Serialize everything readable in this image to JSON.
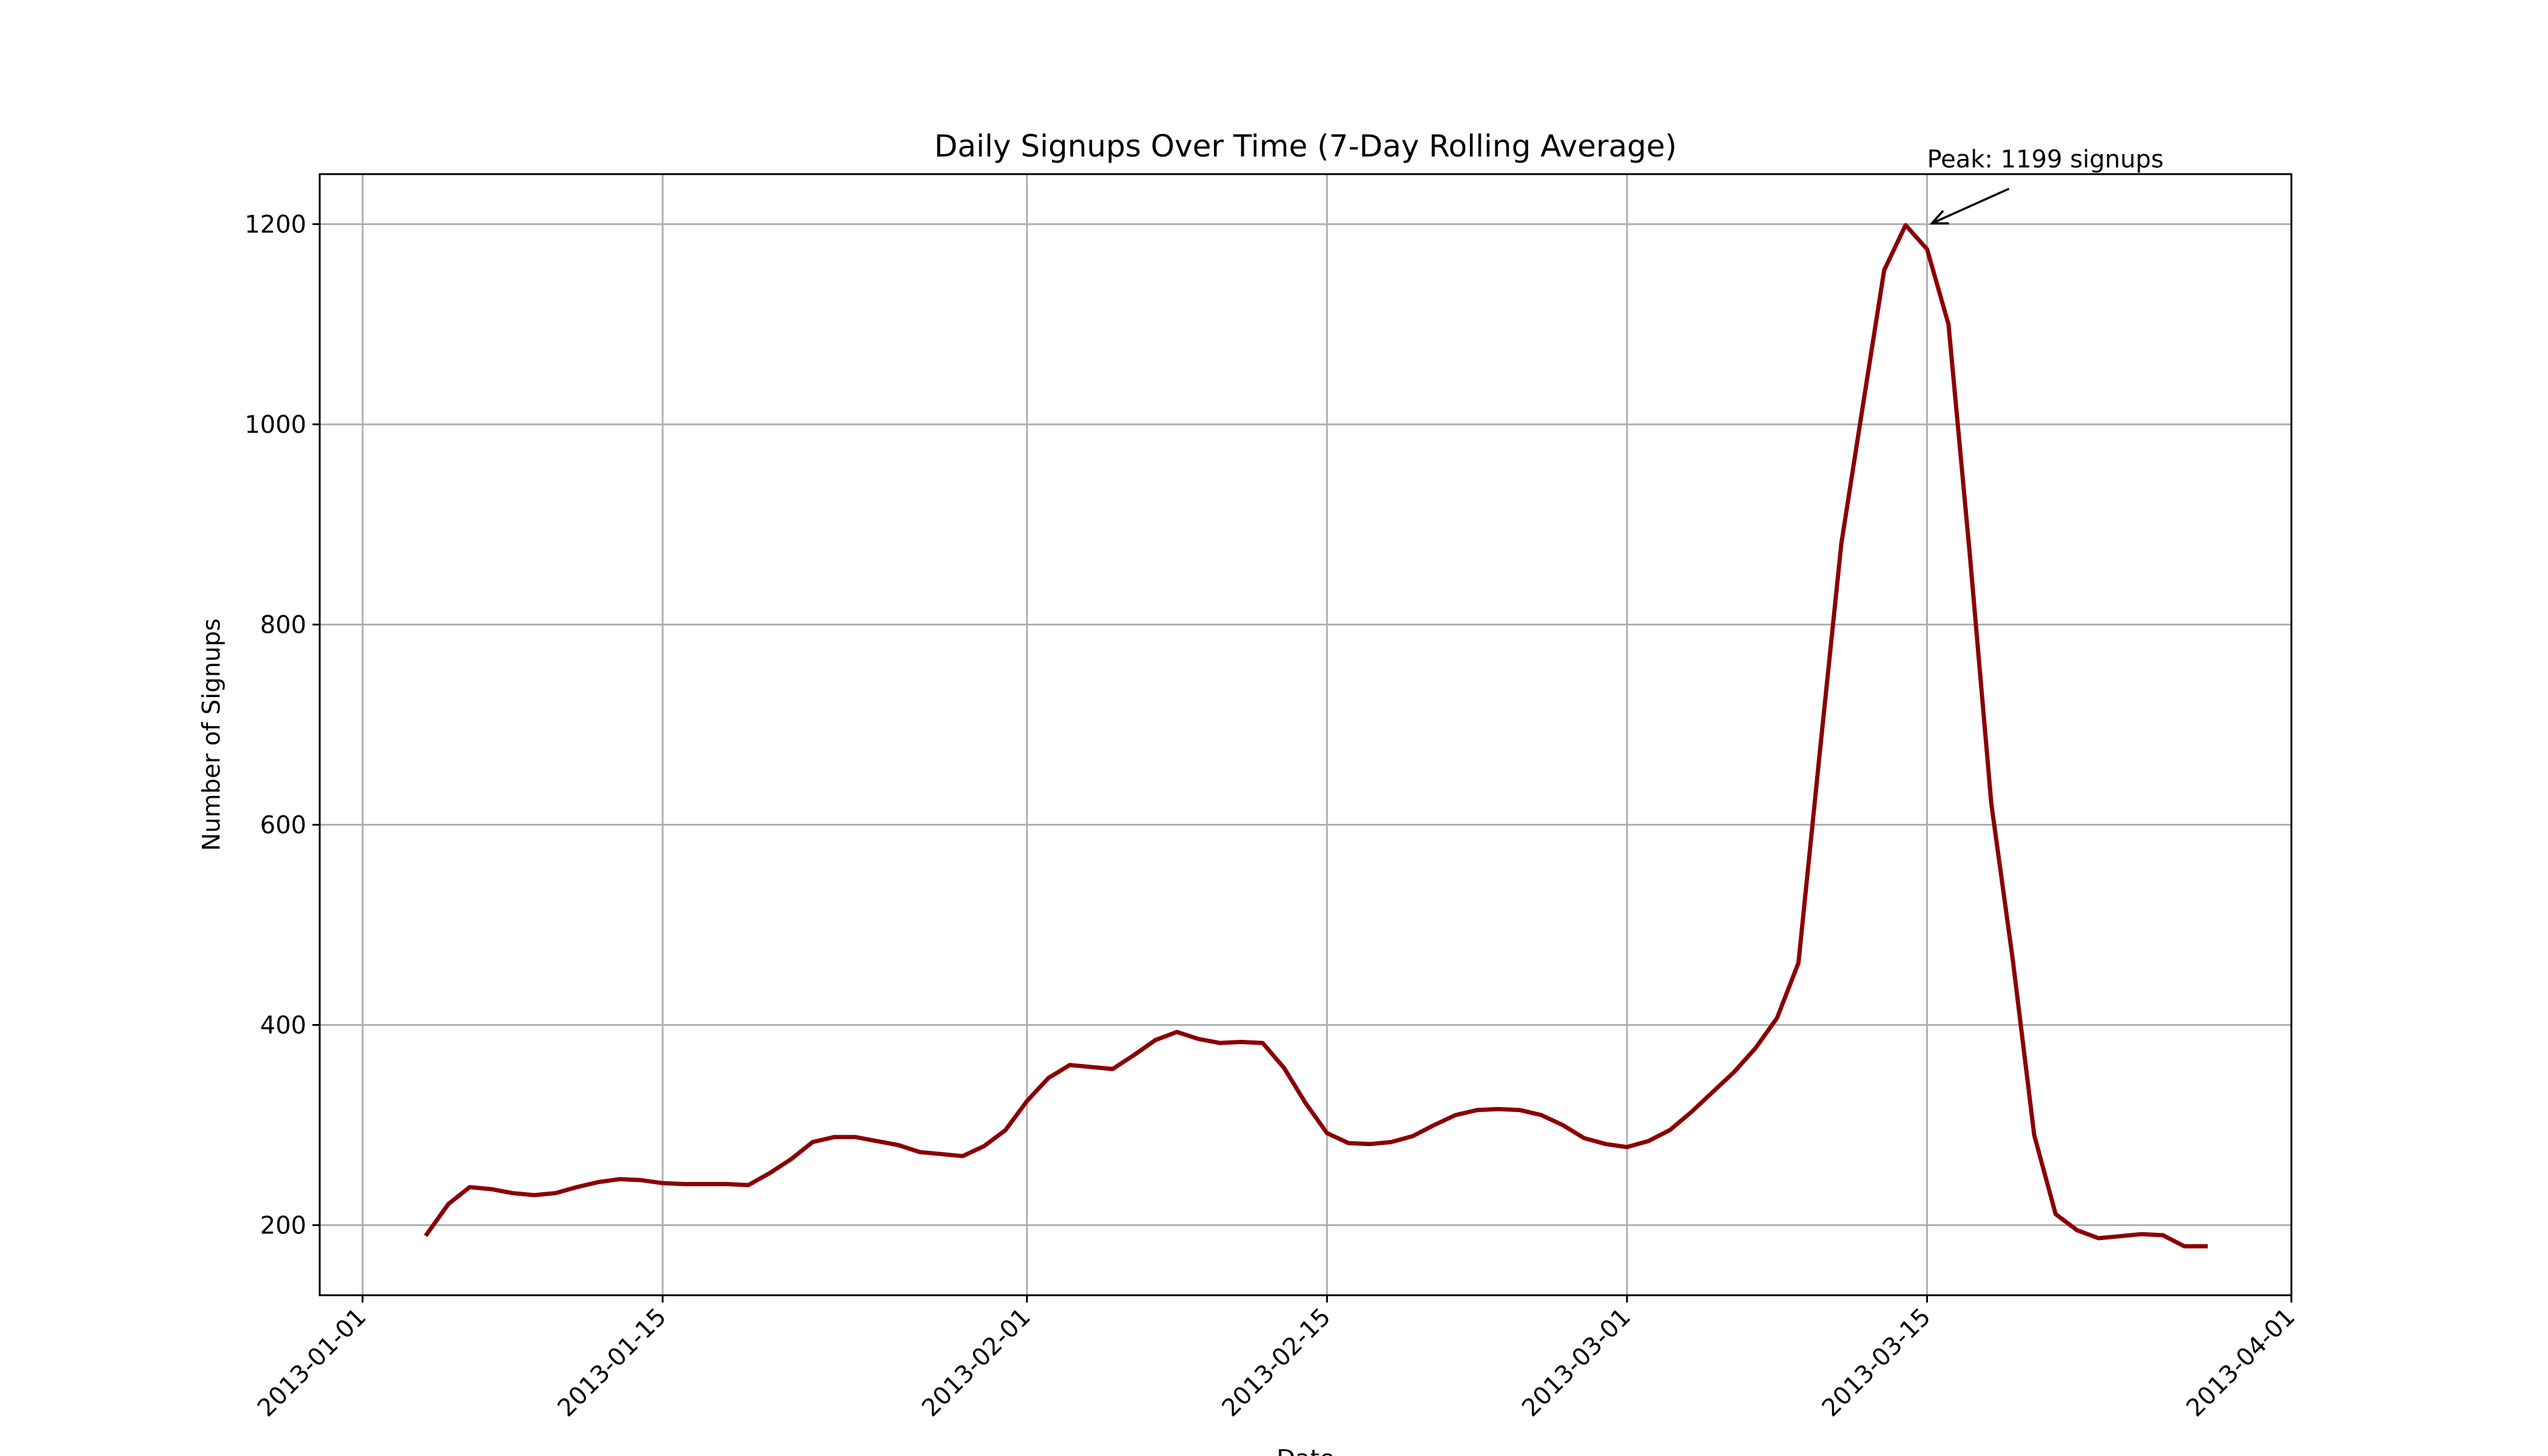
{
  "chart_data": {
    "type": "line",
    "title": "Daily Signups Over Time (7-Day Rolling Average)",
    "xlabel": "Date",
    "ylabel": "Number of Signups",
    "grid": true,
    "x_range": [
      "2012-12-30",
      "2013-04-01"
    ],
    "ylim": [
      130,
      1250
    ],
    "x_ticks": [
      "2013-01-01",
      "2013-01-15",
      "2013-02-01",
      "2013-02-15",
      "2013-03-01",
      "2013-03-15",
      "2013-04-01"
    ],
    "y_ticks": [
      200,
      400,
      600,
      800,
      1000,
      1200
    ],
    "colors": {
      "line": "#8b0000",
      "grid": "#b0b0b0"
    },
    "annotation": {
      "text": "Peak: 1199 signups",
      "x": "2013-03-15",
      "y": 1199
    },
    "series": [
      {
        "x": [
          "2013-01-04",
          "2013-01-05",
          "2013-01-06",
          "2013-01-07",
          "2013-01-08",
          "2013-01-09",
          "2013-01-10",
          "2013-01-11",
          "2013-01-12",
          "2013-01-13",
          "2013-01-14",
          "2013-01-15",
          "2013-01-16",
          "2013-01-17",
          "2013-01-18",
          "2013-01-19",
          "2013-01-20",
          "2013-01-21",
          "2013-01-22",
          "2013-01-23",
          "2013-01-24",
          "2013-01-25",
          "2013-01-26",
          "2013-01-27",
          "2013-01-28",
          "2013-01-29",
          "2013-01-30",
          "2013-01-31",
          "2013-02-01",
          "2013-02-02",
          "2013-02-03",
          "2013-02-04",
          "2013-02-05",
          "2013-02-06",
          "2013-02-07",
          "2013-02-08",
          "2013-02-09",
          "2013-02-10",
          "2013-02-11",
          "2013-02-12",
          "2013-02-13",
          "2013-02-14",
          "2013-02-15",
          "2013-02-16",
          "2013-02-17",
          "2013-02-18",
          "2013-02-19",
          "2013-02-20",
          "2013-02-21",
          "2013-02-22",
          "2013-02-23",
          "2013-02-24",
          "2013-02-25",
          "2013-02-26",
          "2013-02-27",
          "2013-02-28",
          "2013-03-01",
          "2013-03-02",
          "2013-03-03",
          "2013-03-04",
          "2013-03-05",
          "2013-03-06",
          "2013-03-07",
          "2013-03-08",
          "2013-03-09",
          "2013-03-10",
          "2013-03-11",
          "2013-03-12",
          "2013-03-13",
          "2013-03-14",
          "2013-03-15",
          "2013-03-16",
          "2013-03-17",
          "2013-03-18",
          "2013-03-19",
          "2013-03-20",
          "2013-03-21",
          "2013-03-22",
          "2013-03-23",
          "2013-03-24",
          "2013-03-25",
          "2013-03-26",
          "2013-03-27",
          "2013-03-28"
        ],
        "values": [
          191,
          221,
          238,
          236,
          232,
          230,
          232,
          238,
          243,
          246,
          245,
          242,
          241,
          241,
          241,
          240,
          252,
          266,
          283,
          288,
          288,
          284,
          280,
          273,
          271,
          269,
          279,
          295,
          324,
          347,
          360,
          358,
          356,
          370,
          385,
          393,
          386,
          382,
          383,
          382,
          357,
          322,
          292,
          282,
          281,
          283,
          289,
          300,
          310,
          315,
          316,
          315,
          310,
          300,
          287,
          281,
          278,
          284,
          295,
          313,
          333,
          353,
          377,
          407,
          462,
          673,
          881,
          1018,
          1154,
          1199,
          1175,
          1100,
          869,
          621,
          465,
          290,
          211,
          195,
          187,
          189,
          191,
          190,
          179,
          179
        ]
      }
    ]
  }
}
